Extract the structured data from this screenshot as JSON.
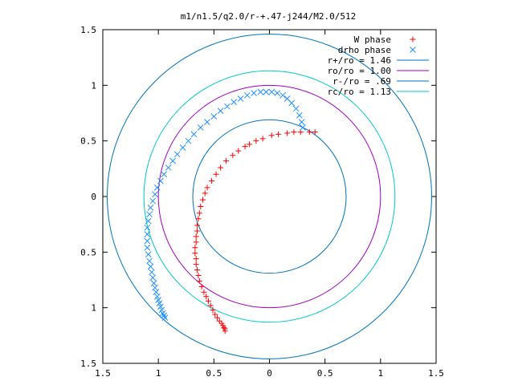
{
  "chart_data": {
    "type": "scatter",
    "title": "m1/n1.5/q2.0/r-+.47-j244/M2.0/512",
    "xlabel": "",
    "ylabel": "",
    "xlim": [
      -1.5,
      1.5
    ],
    "ylim": [
      -1.5,
      1.5
    ],
    "x_ticks": [
      -1.5,
      -1,
      -0.5,
      0,
      0.5,
      1,
      1.5
    ],
    "y_ticks": [
      -1.5,
      -1,
      -0.5,
      0,
      0.5,
      1,
      1.5
    ],
    "x_tick_labels": [
      "1.5",
      "1",
      "0.5",
      "0",
      "0.5",
      "1",
      "1.5"
    ],
    "y_tick_labels": [
      "1.5",
      "1",
      "0.5",
      "0",
      "0.5",
      "1",
      "1.5"
    ],
    "grid": false,
    "legend_position": "top-right",
    "series": [
      {
        "name": "W phase",
        "marker": "plus",
        "color": "#ff0000",
        "x": [
          0.41,
          0.36,
          0.28,
          0.22,
          0.16,
          0.08,
          0.02,
          -0.06,
          -0.12,
          -0.18,
          -0.22,
          -0.28,
          -0.33,
          -0.39,
          -0.44,
          -0.48,
          -0.52,
          -0.56,
          -0.58,
          -0.6,
          -0.62,
          -0.63,
          -0.64,
          -0.65,
          -0.65,
          -0.66,
          -0.66,
          -0.67,
          -0.67,
          -0.66,
          -0.66,
          -0.65,
          -0.64,
          -0.63,
          -0.61,
          -0.59,
          -0.57,
          -0.55,
          -0.53,
          -0.51,
          -0.49,
          -0.47,
          -0.45,
          -0.43,
          -0.42,
          -0.41,
          -0.4,
          -0.4
        ],
        "y": [
          0.58,
          0.58,
          0.58,
          0.58,
          0.57,
          0.56,
          0.55,
          0.52,
          0.5,
          0.47,
          0.45,
          0.41,
          0.37,
          0.32,
          0.26,
          0.2,
          0.14,
          0.08,
          0.03,
          -0.03,
          -0.09,
          -0.15,
          -0.2,
          -0.26,
          -0.31,
          -0.36,
          -0.41,
          -0.46,
          -0.51,
          -0.56,
          -0.61,
          -0.66,
          -0.71,
          -0.76,
          -0.81,
          -0.86,
          -0.9,
          -0.94,
          -0.98,
          -1.02,
          -1.06,
          -1.09,
          -1.12,
          -1.14,
          -1.16,
          -1.18,
          -1.19,
          -1.21
        ]
      },
      {
        "name": "drho phase",
        "marker": "cross",
        "color": "#1e90ff",
        "x": [
          0.3,
          0.29,
          0.27,
          0.24,
          0.2,
          0.16,
          0.12,
          0.07,
          0.02,
          -0.03,
          -0.08,
          -0.14,
          -0.2,
          -0.26,
          -0.32,
          -0.38,
          -0.44,
          -0.5,
          -0.56,
          -0.62,
          -0.68,
          -0.73,
          -0.78,
          -0.83,
          -0.87,
          -0.91,
          -0.95,
          -0.98,
          -1.01,
          -1.03,
          -1.05,
          -1.07,
          -1.08,
          -1.09,
          -1.1,
          -1.1,
          -1.1,
          -1.1,
          -1.09,
          -1.08,
          -1.07,
          -1.06,
          -1.05,
          -1.04,
          -1.03,
          -1.02,
          -1.01,
          -1.0,
          -0.99,
          -0.98,
          -0.97,
          -0.96,
          -0.95,
          -0.94
        ],
        "y": [
          0.62,
          0.67,
          0.73,
          0.79,
          0.84,
          0.88,
          0.91,
          0.93,
          0.94,
          0.94,
          0.94,
          0.93,
          0.91,
          0.88,
          0.85,
          0.81,
          0.77,
          0.72,
          0.67,
          0.62,
          0.56,
          0.5,
          0.44,
          0.38,
          0.32,
          0.26,
          0.2,
          0.14,
          0.08,
          0.02,
          -0.04,
          -0.1,
          -0.16,
          -0.22,
          -0.28,
          -0.34,
          -0.4,
          -0.46,
          -0.52,
          -0.58,
          -0.63,
          -0.68,
          -0.73,
          -0.78,
          -0.82,
          -0.86,
          -0.9,
          -0.93,
          -0.96,
          -0.99,
          -1.02,
          -1.05,
          -1.07,
          -1.09
        ]
      },
      {
        "name": "r+/ro = 1.46",
        "type": "circle",
        "radius": 1.46,
        "color": "#0072bd"
      },
      {
        "name": "ro/ro = 1.00",
        "type": "circle",
        "radius": 1.0,
        "color": "#a000c0"
      },
      {
        "name": "r-/ro = .69",
        "type": "circle",
        "radius": 0.69,
        "color": "#0072bd"
      },
      {
        "name": "rc/ro = 1.13",
        "type": "circle",
        "radius": 1.13,
        "color": "#00c8c8"
      }
    ]
  }
}
